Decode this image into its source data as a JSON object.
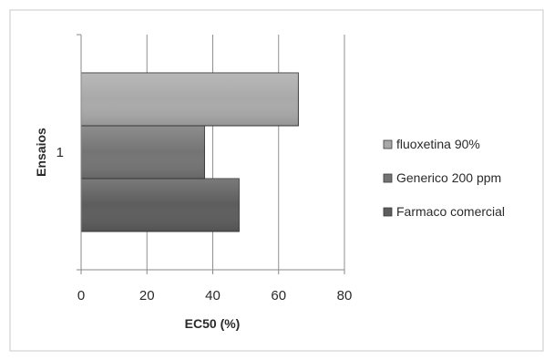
{
  "chart_data": {
    "type": "bar",
    "orientation": "horizontal",
    "categories": [
      "1"
    ],
    "series": [
      {
        "name": "Farmaco comercial",
        "values": [
          48
        ],
        "color": "#5d5d5d"
      },
      {
        "name": "Generico 200 ppm",
        "values": [
          37.5
        ],
        "color": "#747474"
      },
      {
        "name": "fluoxetina 90%",
        "values": [
          66
        ],
        "color": "#a9a9a9"
      }
    ],
    "xlabel": "EC50 (%)",
    "ylabel": "Ensaios",
    "xlim": [
      0,
      80
    ],
    "xticks": [
      0,
      20,
      40,
      60,
      80
    ],
    "grid": true,
    "legend": {
      "placement": "right",
      "entries": [
        "fluoxetina 90%",
        "Generico 200 ppm",
        "Farmaco comercial"
      ]
    }
  }
}
